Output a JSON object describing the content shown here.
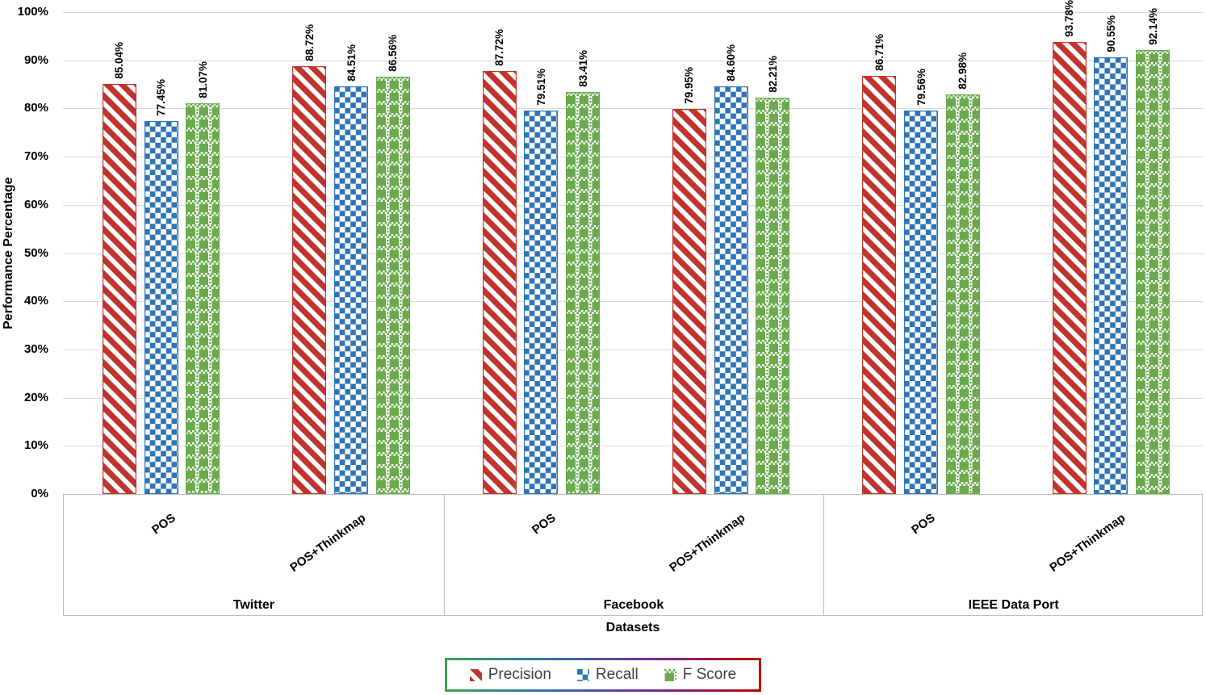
{
  "chart_data": {
    "type": "bar",
    "ylabel": "Performance Percentage",
    "xlabel": "Datasets",
    "ylim": [
      0,
      100
    ],
    "ytick_labels": [
      "0%",
      "10%",
      "20%",
      "30%",
      "40%",
      "50%",
      "60%",
      "70%",
      "80%",
      "90%",
      "100%"
    ],
    "grid": true,
    "legend_position": "bottom",
    "value_label_format": "0.00%",
    "series": [
      {
        "name": "Precision",
        "color": "#bf342e",
        "pattern": "wide-downward-diagonal-stripes"
      },
      {
        "name": "Recall",
        "color": "#2e74b6",
        "pattern": "checkerboard"
      },
      {
        "name": "F Score",
        "color": "#6aaa4d",
        "pattern": "plaid"
      }
    ],
    "groups": [
      {
        "label": "Twitter",
        "subgroups": [
          {
            "label": "POS",
            "values": [
              85.04,
              77.45,
              81.07
            ]
          },
          {
            "label": "POS+Thinkmap",
            "values": [
              88.72,
              84.51,
              86.56
            ]
          }
        ]
      },
      {
        "label": "Facebook",
        "subgroups": [
          {
            "label": "POS",
            "values": [
              87.72,
              79.51,
              83.41
            ]
          },
          {
            "label": "POS+Thinkmap",
            "values": [
              79.95,
              84.6,
              82.21
            ]
          }
        ]
      },
      {
        "label": "IEEE Data Port",
        "subgroups": [
          {
            "label": "POS",
            "values": [
              86.71,
              79.56,
              82.98
            ]
          },
          {
            "label": "POS+Thinkmap",
            "values": [
              93.78,
              90.55,
              92.14
            ]
          }
        ]
      }
    ]
  },
  "legend": {
    "border_gradient": [
      "#3fa34a",
      "#2e74b6",
      "#7030a0",
      "#c00000"
    ]
  },
  "colors": {
    "gridline": "#d9d9d9",
    "axis_box_border": "#bfbfbf",
    "legend_text": "#404040"
  }
}
